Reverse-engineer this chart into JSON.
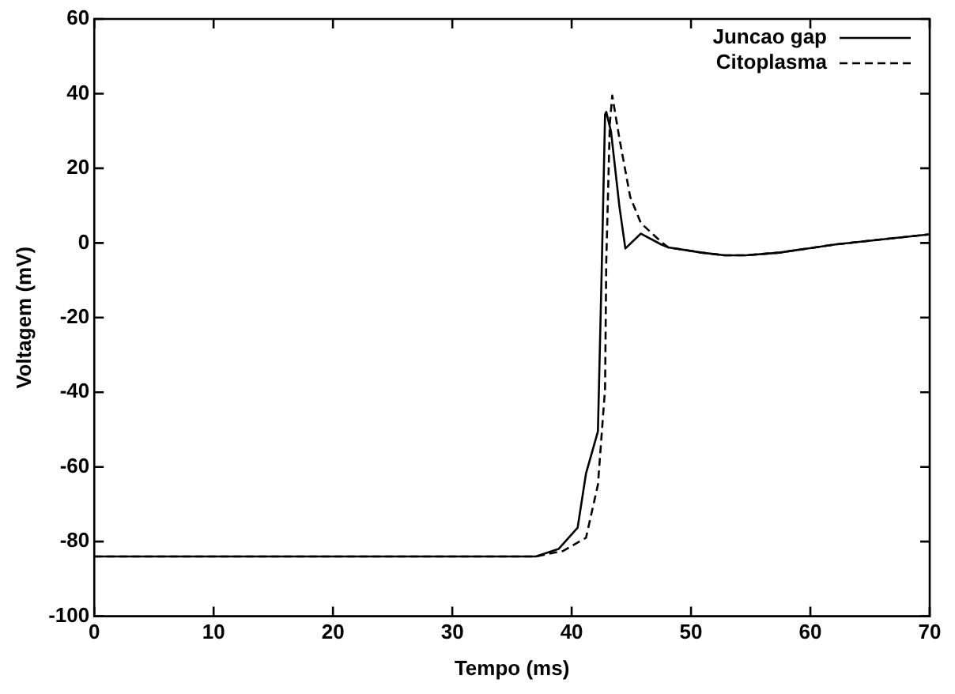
{
  "chart_data": {
    "type": "line",
    "xlabel": "Tempo (ms)",
    "ylabel": "Voltagem (mV)",
    "xlim": [
      0,
      70
    ],
    "xticks": [
      0,
      10,
      20,
      30,
      40,
      50,
      60,
      70
    ],
    "ylim": [
      -100,
      60
    ],
    "yticks": [
      -100,
      -80,
      -60,
      -40,
      -20,
      0,
      20,
      40,
      60
    ],
    "grid": false,
    "legend": "top right",
    "marker": "none",
    "series": [
      {
        "name": "Juncao gap",
        "color": "#000000",
        "line_style": "solid",
        "x": [
          0,
          37,
          38.9,
          40.5,
          41.2,
          42.2,
          42.5,
          42.8,
          42.9,
          43.3,
          44.0,
          44.5,
          45.8,
          47.5,
          48.1,
          50.9,
          52.8,
          54.6,
          57.4,
          62.1,
          66.7,
          70
        ],
        "values": [
          -84,
          -84,
          -82,
          -76.3,
          -61.8,
          -50.5,
          -9.8,
          34.4,
          35.1,
          29.8,
          9.8,
          -1.5,
          2.5,
          -0.4,
          -1.2,
          -2.6,
          -3.3,
          -3.3,
          -2.6,
          -0.4,
          1.2,
          2.3
        ]
      },
      {
        "name": "Citoplasma",
        "color": "#000000",
        "line_style": "dashed",
        "x": [
          0,
          37,
          39.3,
          41.2,
          42.2,
          42.8,
          42.9,
          43.2,
          43.4,
          44.0,
          44.9,
          45.8,
          47.5,
          48.1,
          50.9,
          52.8,
          54.6,
          57.4,
          62.1,
          66.7,
          70
        ],
        "values": [
          -84,
          -84,
          -82.5,
          -79,
          -64.8,
          -39,
          -5,
          32,
          39.5,
          28,
          12.4,
          5.3,
          0.3,
          -1.2,
          -2.6,
          -3.3,
          -3.3,
          -2.6,
          -0.4,
          1.2,
          2.3
        ]
      }
    ]
  }
}
